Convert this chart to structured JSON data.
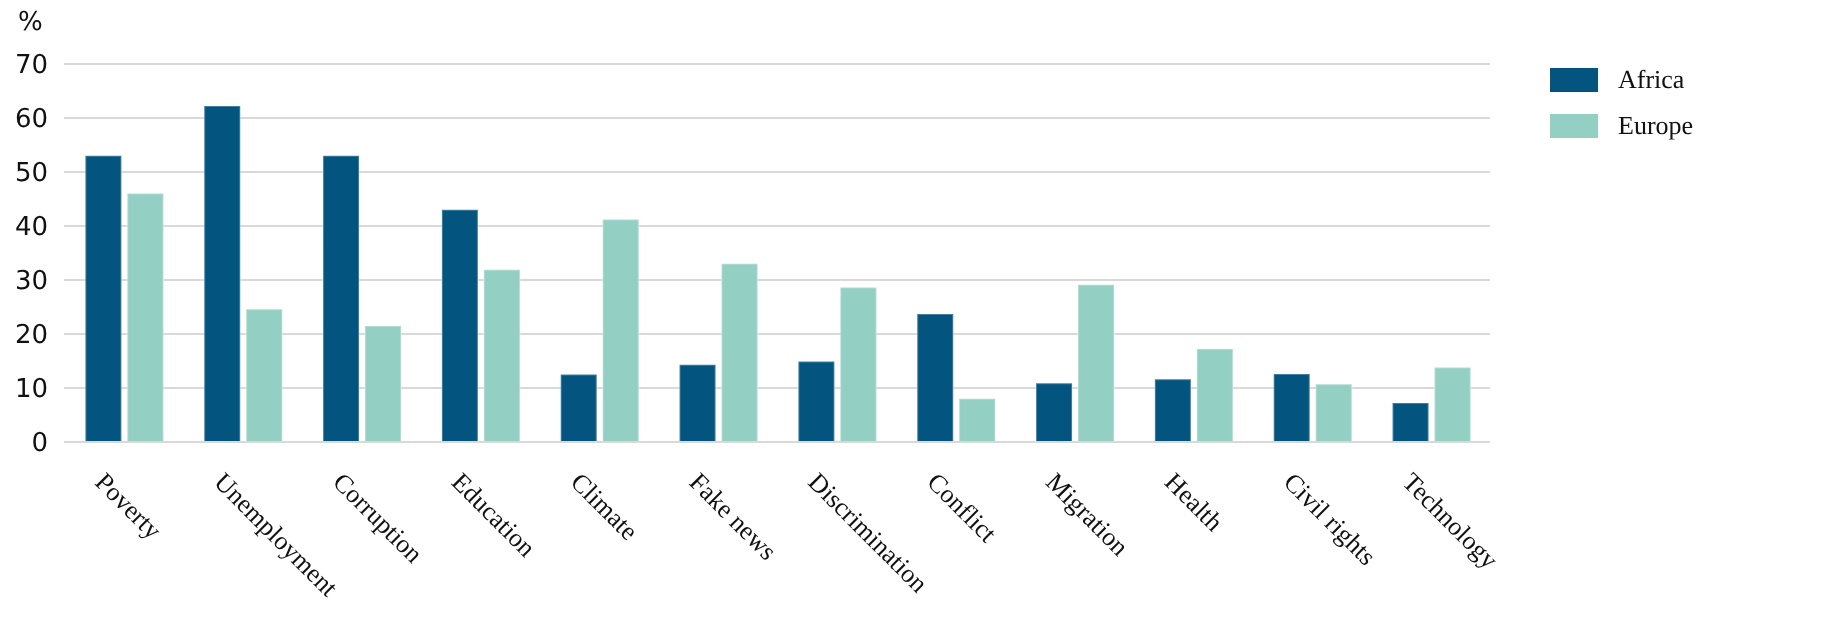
{
  "chart_data": {
    "type": "bar",
    "ylabel": "%",
    "categories": [
      "Poverty",
      "Unemployment",
      "Corruption",
      "Education",
      "Climate",
      "Fake news",
      "Discrimination",
      "Conflict",
      "Migration",
      "Health",
      "Civil rights",
      "Technology"
    ],
    "series": [
      {
        "name": "Africa",
        "color": "#03557f",
        "values": [
          53,
          62.2,
          53,
          43,
          12.5,
          14.3,
          14.9,
          23.7,
          10.9,
          11.6,
          12.6,
          7.2
        ]
      },
      {
        "name": "Europe",
        "color": "#94cfc4",
        "values": [
          46,
          24.6,
          21.5,
          31.9,
          41.2,
          33,
          28.6,
          8,
          29.1,
          17.2,
          10.7,
          13.8
        ]
      }
    ],
    "ylim": [
      0,
      70
    ],
    "yticks": [
      0,
      10,
      20,
      30,
      40,
      50,
      60,
      70
    ],
    "grid": "y",
    "legend": "top right"
  }
}
